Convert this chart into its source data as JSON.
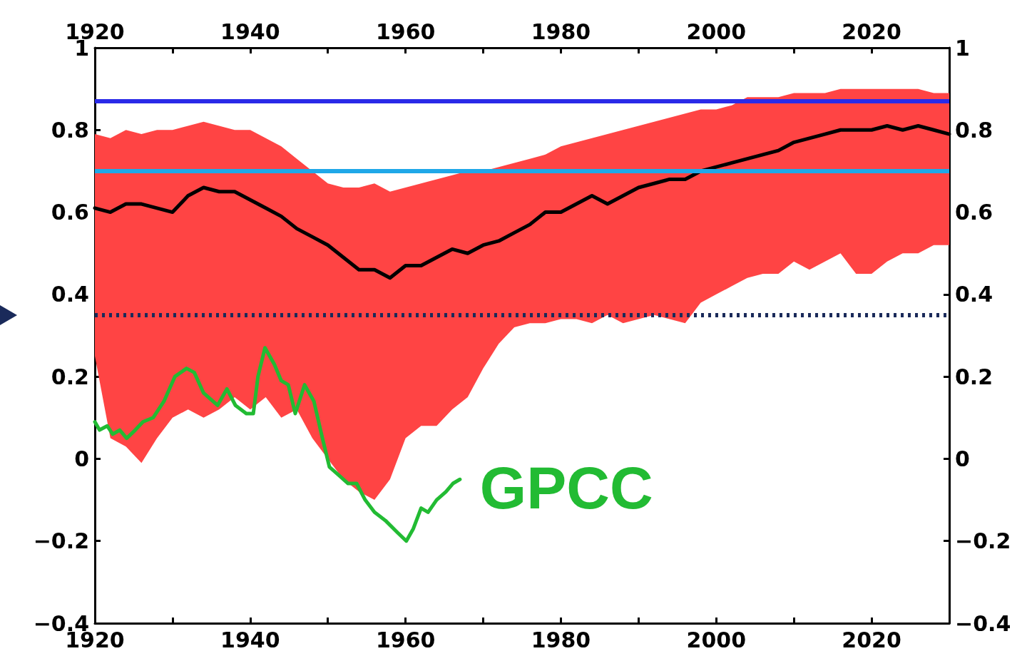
{
  "chart_data": {
    "type": "line",
    "x": [
      1920,
      1922,
      1924,
      1926,
      1928,
      1930,
      1932,
      1934,
      1936,
      1938,
      1940,
      1942,
      1944,
      1946,
      1948,
      1950,
      1952,
      1954,
      1956,
      1958,
      1960,
      1962,
      1964,
      1966,
      1968,
      1970,
      1972,
      1974,
      1976,
      1978,
      1980,
      1982,
      1984,
      1986,
      1988,
      1990,
      1992,
      1994,
      1996,
      1998,
      2000,
      2002,
      2004,
      2006,
      2008,
      2010,
      2012,
      2014,
      2016,
      2018,
      2020,
      2022,
      2024,
      2026,
      2028,
      2030
    ],
    "series": [
      {
        "color": "#000000",
        "values": [
          0.61,
          0.6,
          0.62,
          0.62,
          0.61,
          0.6,
          0.64,
          0.66,
          0.65,
          0.65,
          0.63,
          0.61,
          0.59,
          0.56,
          0.54,
          0.52,
          0.49,
          0.46,
          0.46,
          0.44,
          0.47,
          0.47,
          0.49,
          0.51,
          0.5,
          0.52,
          0.53,
          0.55,
          0.57,
          0.6,
          0.6,
          0.62,
          0.64,
          0.62,
          0.64,
          0.66,
          0.67,
          0.68,
          0.68,
          0.7,
          0.71,
          0.72,
          0.73,
          0.74,
          0.75,
          0.77,
          0.78,
          0.79,
          0.8,
          0.8,
          0.8,
          0.81,
          0.8,
          0.81,
          0.8,
          0.79
        ],
        "upper": [
          0.79,
          0.78,
          0.8,
          0.79,
          0.8,
          0.8,
          0.81,
          0.82,
          0.81,
          0.8,
          0.8,
          0.78,
          0.76,
          0.73,
          0.7,
          0.67,
          0.66,
          0.66,
          0.67,
          0.65,
          0.66,
          0.67,
          0.68,
          0.69,
          0.7,
          0.7,
          0.71,
          0.72,
          0.73,
          0.74,
          0.76,
          0.77,
          0.78,
          0.79,
          0.8,
          0.81,
          0.82,
          0.83,
          0.84,
          0.85,
          0.85,
          0.86,
          0.88,
          0.88,
          0.88,
          0.89,
          0.89,
          0.89,
          0.9,
          0.9,
          0.9,
          0.9,
          0.9,
          0.9,
          0.89,
          0.89
        ],
        "lower": [
          0.25,
          0.05,
          0.03,
          -0.01,
          0.05,
          0.1,
          0.12,
          0.1,
          0.12,
          0.15,
          0.12,
          0.15,
          0.1,
          0.12,
          0.05,
          0.0,
          -0.05,
          -0.08,
          -0.1,
          -0.05,
          0.05,
          0.08,
          0.08,
          0.12,
          0.15,
          0.22,
          0.28,
          0.32,
          0.33,
          0.33,
          0.34,
          0.34,
          0.33,
          0.35,
          0.33,
          0.34,
          0.35,
          0.34,
          0.33,
          0.38,
          0.4,
          0.42,
          0.44,
          0.45,
          0.45,
          0.48,
          0.46,
          0.48,
          0.5,
          0.45,
          0.45,
          0.48,
          0.5,
          0.5,
          0.52,
          0.52
        ]
      },
      {
        "name": "GPCC",
        "color": "#22bb33",
        "x": [
          1920,
          1920.6,
          1921.6,
          1922.3,
          1923.2,
          1924.1,
          1925.2,
          1926.2,
          1927.5,
          1928.9,
          1930.3,
          1931.8,
          1932.8,
          1934,
          1935.8,
          1937,
          1938.1,
          1939.5,
          1940.4,
          1941,
          1941.9,
          1943.1,
          1944,
          1944.9,
          1945.8,
          1947,
          1948.2,
          1949.3,
          1950.2,
          1951.4,
          1952.6,
          1953.7,
          1954.8,
          1956,
          1957.4,
          1959,
          1960.1,
          1961,
          1962,
          1962.9,
          1964,
          1965.2,
          1966.1,
          1967
        ],
        "values": [
          0.09,
          0.07,
          0.08,
          0.06,
          0.07,
          0.05,
          0.07,
          0.09,
          0.1,
          0.14,
          0.2,
          0.22,
          0.21,
          0.16,
          0.13,
          0.17,
          0.13,
          0.11,
          0.11,
          0.2,
          0.27,
          0.23,
          0.19,
          0.18,
          0.11,
          0.18,
          0.14,
          0.05,
          -0.02,
          -0.04,
          -0.06,
          -0.06,
          -0.1,
          -0.13,
          -0.15,
          -0.18,
          -0.2,
          -0.17,
          -0.12,
          -0.13,
          -0.1,
          -0.08,
          -0.06,
          -0.05
        ]
      }
    ],
    "xlim": [
      1920,
      2030
    ],
    "xticks": [
      1920,
      {
        "value": 1930,
        "label": null
      },
      1940,
      {
        "value": 1950,
        "label": null
      },
      1960,
      {
        "value": 1970,
        "label": null
      },
      1980,
      {
        "value": 1990,
        "label": null
      },
      2000,
      {
        "value": 2010,
        "label": null
      },
      2020
    ],
    "x2lim": [
      1920,
      2030
    ],
    "x2ticks": [
      1920,
      {
        "value": 1930,
        "label": null
      },
      1940,
      {
        "value": 1950,
        "label": null
      },
      1960,
      {
        "value": 1970,
        "label": null
      },
      1980,
      {
        "value": 1990,
        "label": null
      },
      2000,
      {
        "value": 2010,
        "label": null
      },
      2020
    ],
    "ylim": [
      -0.4,
      1
    ],
    "yticks": [
      {
        "value": -0.4,
        "label": "−0.4"
      },
      {
        "value": -0.2,
        "label": "−0.2"
      },
      0,
      0.2,
      0.4,
      0.6,
      0.8,
      1
    ],
    "y2lim": [
      -0.4,
      1
    ],
    "y2ticks": [
      {
        "value": -0.4,
        "label": "−0.4"
      },
      {
        "value": -0.2,
        "label": "−0.2"
      },
      0,
      0.2,
      0.4,
      0.6,
      0.8,
      1
    ],
    "ref_lines": [
      {
        "axis": "y",
        "value": 0.87,
        "color": "#2a2ae8",
        "line_style": "solid"
      },
      {
        "axis": "y",
        "value": 0.7,
        "color": "#1fa8e8",
        "line_style": "solid"
      },
      {
        "axis": "y",
        "value": 0.35,
        "color": "#1a2a5a",
        "line_style": "dotted"
      }
    ],
    "grid": false,
    "legend": false,
    "marker": "none",
    "line_style": "solid"
  }
}
